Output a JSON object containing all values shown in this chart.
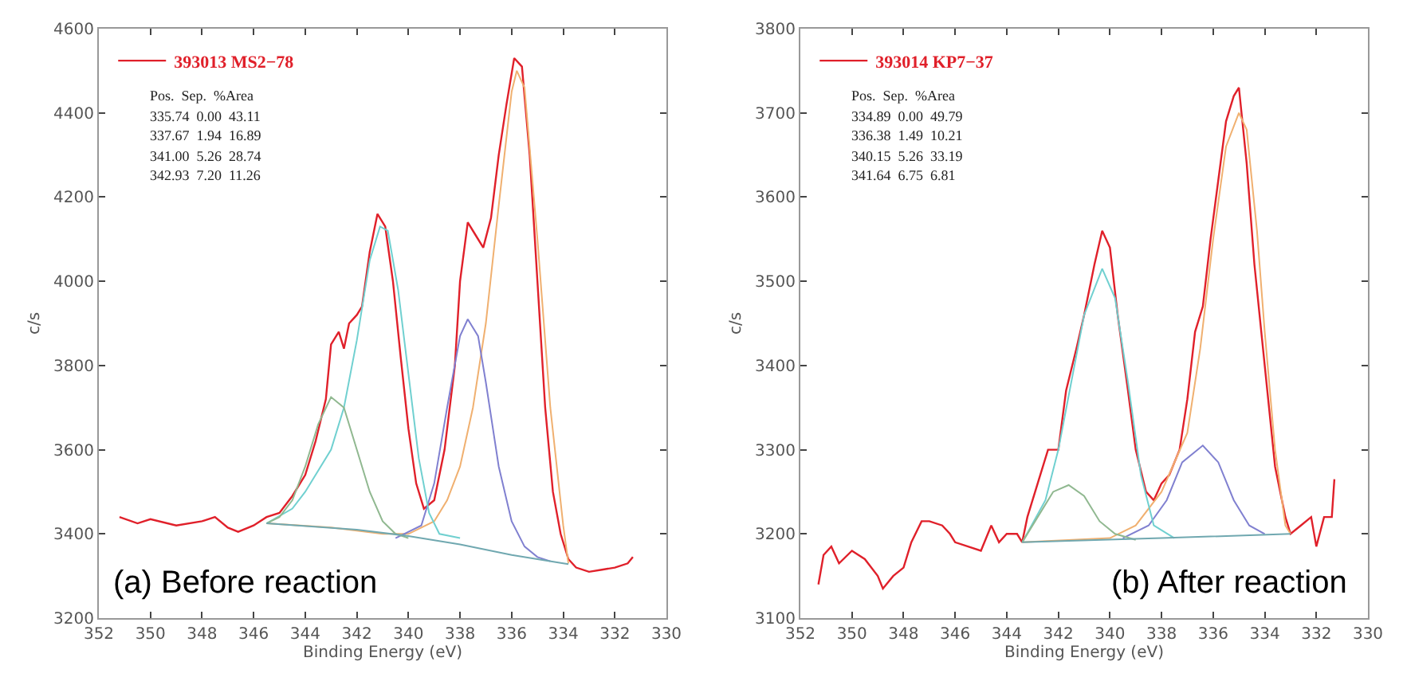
{
  "chart_data": [
    {
      "type": "line",
      "xlabel": "Binding Energy (eV)",
      "ylabel": "c/s",
      "xlim": [
        352,
        330
      ],
      "xticks": [
        352,
        350,
        348,
        346,
        344,
        342,
        340,
        338,
        336,
        334,
        332,
        330
      ],
      "ylim": [
        3200,
        4600
      ],
      "yticks": [
        3200,
        3400,
        3600,
        3800,
        4000,
        4200,
        4400,
        4600
      ],
      "grid": false,
      "legend": "top left",
      "annotations": [
        "Pos.  Sep.  %Area",
        "335.74  0.00  43.11",
        "337.67  1.94  16.89",
        "341.00  5.26  28.74",
        "342.93  7.20  11.26",
        "(a) Before reaction"
      ],
      "series": [
        {
          "name": "393013 MS2−78",
          "color": "#e0202a",
          "x": [
            351.2,
            350.5,
            350,
            349,
            348,
            347.5,
            347,
            346.6,
            346,
            345.5,
            345,
            344.5,
            344,
            343.6,
            343.2,
            343,
            342.7,
            342.5,
            342.3,
            342,
            341.8,
            341.5,
            341.2,
            340.9,
            340.6,
            340.3,
            340,
            339.7,
            339.4,
            339,
            338.6,
            338.2,
            338,
            337.7,
            337.4,
            337.1,
            336.8,
            336.5,
            336.2,
            335.9,
            335.6,
            335.3,
            335,
            334.7,
            334.4,
            334.1,
            333.8,
            333.5,
            333,
            332.5,
            332,
            331.5,
            331.3
          ],
          "values": [
            3440,
            3425,
            3435,
            3420,
            3430,
            3440,
            3415,
            3405,
            3420,
            3440,
            3450,
            3490,
            3540,
            3620,
            3720,
            3850,
            3880,
            3840,
            3900,
            3920,
            3940,
            4070,
            4160,
            4130,
            4000,
            3820,
            3650,
            3520,
            3460,
            3480,
            3600,
            3800,
            4000,
            4140,
            4110,
            4080,
            4150,
            4300,
            4420,
            4530,
            4510,
            4300,
            4000,
            3700,
            3500,
            3400,
            3340,
            3320,
            3310,
            3315,
            3320,
            3330,
            3345
          ]
        },
        {
          "color": "#f0b070",
          "x": [
            345.5,
            343,
            341,
            340,
            339,
            338.5,
            338,
            337.5,
            337,
            336.5,
            336,
            335.8,
            335.5,
            335,
            334.5,
            334,
            333.8
          ],
          "values": [
            3425,
            3415,
            3400,
            3400,
            3430,
            3480,
            3560,
            3700,
            3900,
            4180,
            4450,
            4500,
            4460,
            4100,
            3700,
            3420,
            3330
          ]
        },
        {
          "color": "#8080d0",
          "x": [
            340.5,
            339.5,
            339,
            338.5,
            338,
            337.7,
            337.3,
            337,
            336.5,
            336,
            335.5,
            335,
            334.5
          ],
          "values": [
            3390,
            3420,
            3520,
            3700,
            3870,
            3910,
            3870,
            3760,
            3560,
            3430,
            3370,
            3345,
            3335
          ]
        },
        {
          "color": "#70d0d0",
          "x": [
            345.5,
            344.5,
            344,
            343,
            342.5,
            342,
            341.5,
            341.1,
            340.8,
            340.4,
            340,
            339.6,
            339.2,
            338.8,
            338
          ],
          "values": [
            3425,
            3460,
            3500,
            3600,
            3700,
            3860,
            4050,
            4130,
            4120,
            3980,
            3780,
            3580,
            3450,
            3400,
            3390
          ]
        },
        {
          "color": "#90b890",
          "x": [
            345.5,
            345,
            344.5,
            344,
            343.5,
            343,
            342.5,
            342,
            341.5,
            341,
            340.5,
            340
          ],
          "values": [
            3425,
            3440,
            3480,
            3560,
            3660,
            3725,
            3700,
            3600,
            3500,
            3430,
            3400,
            3390
          ]
        },
        {
          "color": "#70a8b0",
          "x": [
            345.5,
            342,
            340,
            338,
            336,
            334,
            333.8
          ],
          "values": [
            3425,
            3410,
            3395,
            3375,
            3350,
            3330,
            3328
          ]
        }
      ]
    },
    {
      "type": "line",
      "xlabel": "Binding Energy (eV)",
      "ylabel": "c/s",
      "xlim": [
        352,
        330
      ],
      "xticks": [
        352,
        350,
        348,
        346,
        344,
        342,
        340,
        338,
        336,
        334,
        332,
        330
      ],
      "ylim": [
        3100,
        3800
      ],
      "yticks": [
        3100,
        3200,
        3300,
        3400,
        3500,
        3600,
        3700,
        3800
      ],
      "grid": false,
      "legend": "top left",
      "annotations": [
        "Pos.  Sep.  %Area",
        "334.89  0.00  49.79",
        "336.38  1.49  10.21",
        "340.15  5.26  33.19",
        "341.64  6.75  6.81",
        "(b) After reaction"
      ],
      "series": [
        {
          "name": "393014 KP7−37",
          "color": "#e0202a",
          "x": [
            351.3,
            351.1,
            350.8,
            350.5,
            350,
            349.5,
            349,
            348.8,
            348.4,
            348,
            347.7,
            347.3,
            347,
            346.5,
            346.2,
            346,
            345.5,
            345,
            344.6,
            344.3,
            344,
            343.6,
            343.4,
            343.2,
            342.8,
            342.4,
            342,
            341.7,
            341.3,
            341,
            340.6,
            340.3,
            340,
            339.7,
            339.3,
            339,
            338.6,
            338.3,
            338,
            337.7,
            337.3,
            337,
            336.7,
            336.4,
            336.1,
            335.8,
            335.5,
            335.2,
            335,
            334.7,
            334.4,
            334,
            333.6,
            333.2,
            333,
            332.6,
            332.2,
            332,
            331.7,
            331.4,
            331.3
          ],
          "values": [
            3140,
            3175,
            3185,
            3165,
            3180,
            3170,
            3150,
            3135,
            3150,
            3160,
            3190,
            3215,
            3215,
            3210,
            3200,
            3190,
            3185,
            3180,
            3210,
            3190,
            3200,
            3200,
            3190,
            3220,
            3260,
            3300,
            3300,
            3370,
            3420,
            3460,
            3520,
            3560,
            3540,
            3460,
            3370,
            3300,
            3250,
            3240,
            3260,
            3270,
            3300,
            3360,
            3440,
            3470,
            3550,
            3620,
            3690,
            3720,
            3730,
            3640,
            3520,
            3400,
            3280,
            3220,
            3200,
            3210,
            3220,
            3185,
            3220,
            3220,
            3265
          ]
        },
        {
          "color": "#f0b070",
          "x": [
            343.4,
            340,
            339,
            338,
            337,
            336.5,
            336,
            335.5,
            335,
            334.7,
            334.3,
            334,
            333.6,
            333.2,
            333
          ],
          "values": [
            3190,
            3195,
            3210,
            3250,
            3320,
            3420,
            3550,
            3660,
            3700,
            3680,
            3560,
            3440,
            3300,
            3210,
            3200
          ]
        },
        {
          "color": "#8080d0",
          "x": [
            339.5,
            338.5,
            337.8,
            337.2,
            336.4,
            335.8,
            335.2,
            334.6,
            334
          ],
          "values": [
            3195,
            3210,
            3240,
            3285,
            3305,
            3285,
            3240,
            3210,
            3200
          ]
        },
        {
          "color": "#70d0d0",
          "x": [
            343.4,
            342.5,
            342,
            341.5,
            341,
            340.3,
            339.8,
            339.3,
            338.8,
            338.3,
            337.5
          ],
          "values": [
            3190,
            3240,
            3300,
            3380,
            3460,
            3515,
            3480,
            3380,
            3270,
            3210,
            3195
          ]
        },
        {
          "color": "#90b890",
          "x": [
            343.4,
            342.8,
            342.2,
            341.6,
            341,
            340.4,
            339.8,
            339
          ],
          "values": [
            3190,
            3220,
            3250,
            3258,
            3245,
            3215,
            3200,
            3193
          ]
        },
        {
          "color": "#70a8b0",
          "x": [
            343.4,
            338,
            333
          ],
          "values": [
            3190,
            3195,
            3200
          ]
        }
      ]
    }
  ]
}
